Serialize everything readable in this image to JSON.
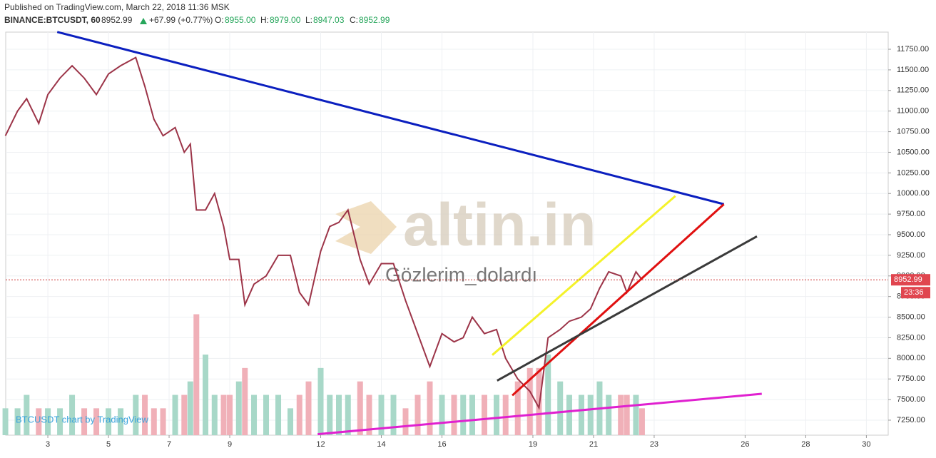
{
  "header": {
    "published": "Published on TradingView.com, March 22, 2018 11:36 MSK",
    "symbol": "BINANCE:BTCUSDT, 60",
    "price": "8952.99",
    "change": "+67.99 (+0.77%)",
    "o_label": "O:",
    "o": "8955.00",
    "h_label": "H:",
    "h": "8979.00",
    "l_label": "L:",
    "l": "8947.03",
    "c_label": "C:",
    "c": "8952.99"
  },
  "chart_data": {
    "type": "line",
    "color": "#9c3448",
    "grid": true,
    "watermark": "altin.in",
    "watermark_sub": "Gözlerim_dolardı",
    "credit": "BTCUSDT chart by TradingView",
    "last_price": 8952.99,
    "last_price_label": "8952.99",
    "countdown": "23:36",
    "x": [
      1.6,
      2.0,
      2.3,
      2.7,
      3.0,
      3.4,
      3.8,
      4.2,
      4.6,
      5.0,
      5.4,
      5.9,
      6.2,
      6.5,
      6.8,
      7.2,
      7.5,
      7.7,
      7.9,
      8.2,
      8.5,
      8.8,
      9.0,
      9.3,
      9.5,
      9.8,
      10.2,
      10.6,
      11.0,
      11.3,
      11.6,
      12.0,
      12.3,
      12.6,
      12.9,
      13.3,
      13.6,
      14.0,
      14.4,
      14.8,
      15.2,
      15.6,
      16.0,
      16.4,
      16.7,
      17.0,
      17.4,
      17.8,
      18.1,
      18.5,
      18.9,
      19.2,
      19.5,
      19.9,
      20.2,
      20.6,
      20.9,
      21.2,
      21.5,
      21.9,
      22.1,
      22.4,
      22.6
    ],
    "values": [
      10700,
      11000,
      11150,
      10850,
      11200,
      11400,
      11550,
      11400,
      11200,
      11450,
      11550,
      11650,
      11300,
      10900,
      10700,
      10800,
      10500,
      10600,
      9800,
      9800,
      10000,
      9600,
      9200,
      9200,
      8650,
      8900,
      9000,
      9250,
      9250,
      8800,
      8650,
      9300,
      9600,
      9650,
      9800,
      9200,
      8900,
      9150,
      9150,
      8700,
      8300,
      7900,
      8300,
      8200,
      8250,
      8500,
      8300,
      8350,
      8000,
      7750,
      7600,
      7400,
      8250,
      8350,
      8450,
      8500,
      8600,
      8850,
      9050,
      9000,
      8800,
      9050,
      8953
    ],
    "volume": [
      2,
      2,
      3,
      2,
      2,
      2,
      3,
      2,
      2,
      2,
      2,
      3,
      3,
      2,
      2,
      3,
      3,
      4,
      9,
      6,
      3,
      3,
      3,
      4,
      5,
      3,
      3,
      3,
      2,
      3,
      4,
      5,
      3,
      3,
      3,
      4,
      3,
      3,
      3,
      2,
      3,
      4,
      3,
      3,
      3,
      3,
      3,
      3,
      3,
      4,
      5,
      5,
      6,
      4,
      3,
      3,
      3,
      4,
      3,
      3,
      3,
      3,
      2
    ],
    "vlim": [
      0,
      30
    ],
    "trendlines": [
      {
        "color": "#0b1fbf",
        "x": [
          3.31,
          25.3
        ],
        "y": [
          11960,
          9870
        ]
      },
      {
        "color": "#f4f22a",
        "x": [
          17.66,
          23.7
        ],
        "y": [
          8040,
          9970
        ]
      },
      {
        "color": "#e01010",
        "x": [
          18.32,
          25.3
        ],
        "y": [
          7550,
          9870
        ]
      },
      {
        "color": "#3a3a3a",
        "x": [
          17.82,
          26.39
        ],
        "y": [
          7730,
          9480
        ]
      },
      {
        "color": "#e020d0",
        "x": [
          11.9,
          26.55
        ],
        "y": [
          7080,
          7570
        ]
      }
    ],
    "xlim": [
      1.61,
      30.72
    ],
    "ylim": [
      7068,
      11958
    ],
    "xticks": [
      3,
      5,
      7,
      9,
      12,
      14,
      16,
      19,
      21,
      23,
      26,
      28,
      30
    ],
    "yticks": [
      {
        "value": 7250,
        "label": "7250.00"
      },
      {
        "value": 7500,
        "label": "7500.00"
      },
      {
        "value": 7750,
        "label": "7750.00"
      },
      {
        "value": 8000,
        "label": "8000.00"
      },
      {
        "value": 8250,
        "label": "8250.00"
      },
      {
        "value": 8500,
        "label": "8500.00"
      },
      {
        "value": 8750,
        "label": "8750.00"
      },
      {
        "value": 9000,
        "label": "9000.00"
      },
      {
        "value": 9250,
        "label": "9250.00"
      },
      {
        "value": 9500,
        "label": "9500.00"
      },
      {
        "value": 9750,
        "label": "9750.00"
      },
      {
        "value": 10000,
        "label": "10000.00"
      },
      {
        "value": 10250,
        "label": "10250.00"
      },
      {
        "value": 10500,
        "label": "10500.00"
      },
      {
        "value": 10750,
        "label": "10750.00"
      },
      {
        "value": 11000,
        "label": "11000.00"
      },
      {
        "value": 11250,
        "label": "11250.00"
      },
      {
        "value": 11500,
        "label": "11500.00"
      },
      {
        "value": 11750,
        "label": "11750.00"
      }
    ]
  }
}
